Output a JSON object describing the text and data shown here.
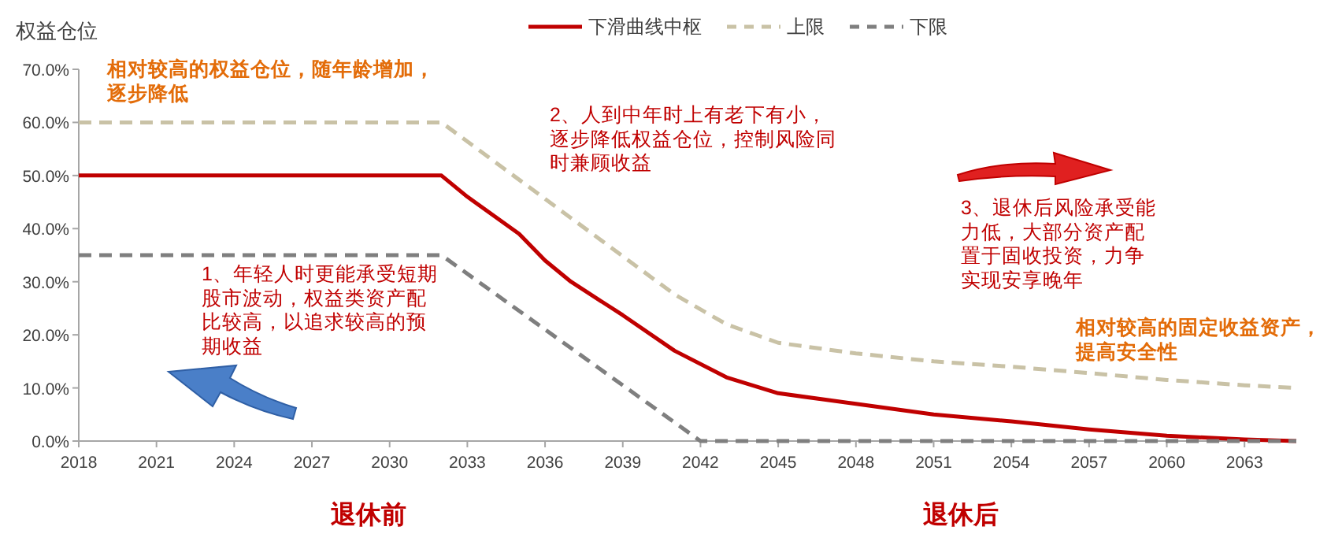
{
  "chart_data": {
    "type": "line",
    "ylabel": "权益仓位",
    "xlim": [
      2018,
      2065
    ],
    "xticks": [
      2018,
      2021,
      2024,
      2027,
      2030,
      2033,
      2036,
      2039,
      2042,
      2045,
      2048,
      2051,
      2054,
      2057,
      2060,
      2063
    ],
    "ylim": [
      0,
      70
    ],
    "yticks": [
      {
        "value": 0,
        "label": "0.0%"
      },
      {
        "value": 10,
        "label": "10.0%"
      },
      {
        "value": 20,
        "label": "20.0%"
      },
      {
        "value": 30,
        "label": "30.0%"
      },
      {
        "value": 40,
        "label": "40.0%"
      },
      {
        "value": 50,
        "label": "50.0%"
      },
      {
        "value": 60,
        "label": "60.0%"
      },
      {
        "value": 70,
        "label": "70.0%"
      }
    ],
    "grid": false,
    "legend": "top",
    "series": [
      {
        "name": "下滑曲线中枢",
        "color": "#c00000",
        "line_style": "solid",
        "x": [
          2018,
          2032,
          2033,
          2035,
          2036,
          2037,
          2039,
          2041,
          2043,
          2045,
          2048,
          2051,
          2054,
          2057,
          2060,
          2063,
          2065
        ],
        "values": [
          50,
          50,
          46,
          39,
          34,
          30,
          23.7,
          17,
          12,
          9,
          7,
          5,
          3.7,
          2.2,
          1,
          0.3,
          0
        ]
      },
      {
        "name": "上限",
        "color": "#c9c2a6",
        "line_style": "dashed",
        "x": [
          2018,
          2032,
          2041,
          2043,
          2045,
          2048,
          2051,
          2054,
          2057,
          2060,
          2063,
          2065
        ],
        "values": [
          60,
          60,
          27.6,
          22,
          18.5,
          16.5,
          15,
          14,
          12.8,
          11.5,
          10.5,
          10
        ]
      },
      {
        "name": "下限",
        "color": "#7f7f7f",
        "line_style": "dashed",
        "x": [
          2018,
          2032,
          2042,
          2065
        ],
        "values": [
          35,
          35,
          0,
          0
        ]
      }
    ],
    "annotations": [
      "相对较高的权益仓位，随年龄增加，逐步降低",
      "1、年轻人时更能承受短期股市波动，权益类资产配比较高，以追求较高的预期收益",
      "2、人到中年时上有老下有小，逐步降低权益仓位，控制风险同时兼顾收益",
      "3、退休后风险承受能力低，大部分资产配置于固收投资，力争实现安享晚年",
      "相对较高的固定收益资产，提高安全性",
      "退休前",
      "退休后"
    ]
  }
}
